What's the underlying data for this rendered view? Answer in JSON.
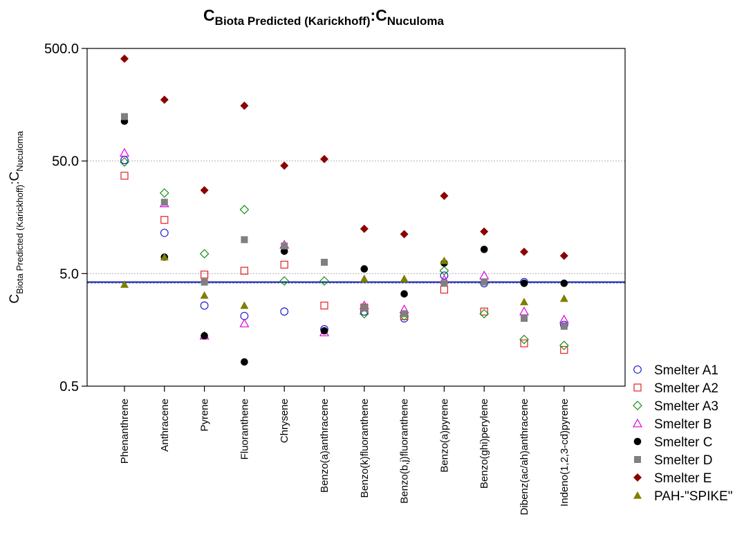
{
  "chart_data": {
    "type": "scatter",
    "title": {
      "base": "C",
      "sub1": "Biota Predicted (Karickhoff)",
      "sep": ":C",
      "sub2": "Nuculoma"
    },
    "ylabel": {
      "base": "C",
      "sub1": "Biota Predicted (Karickhoff)",
      "sep": ":C",
      "sub2": "Nuculoma"
    },
    "yscale": "log",
    "ylim": [
      0.5,
      500
    ],
    "yticks": [
      {
        "value": 500,
        "label": "500.0"
      },
      {
        "value": 50,
        "label": "50.0"
      },
      {
        "value": 5,
        "label": "5.0"
      },
      {
        "value": 0.5,
        "label": "0.5"
      }
    ],
    "gridlines": [
      50,
      5
    ],
    "reference_line": 4.2,
    "categories": [
      "Phenanthrene",
      "Anthracene",
      "Pyrene",
      "Fluoranthene",
      "Chrysene",
      "Benzo(a)anthracene",
      "Benzo(k)fluoranthene",
      "Benzo(b,j)fluoranthene",
      "Benzo(a)pyrene",
      "Benzo(ghi)perylene",
      "Dibenz(ac/ah)anthracene",
      "Indeno(1,2,3-cd)pyrene"
    ],
    "legend_position": "right",
    "series": [
      {
        "name": "Smelter A1",
        "marker": "circle-open",
        "color": "#1f1fcf",
        "values": [
          51,
          11.5,
          2.6,
          2.1,
          2.3,
          1.6,
          2.3,
          2.0,
          4.8,
          4.1,
          4.2,
          1.75
        ]
      },
      {
        "name": "Smelter A2",
        "marker": "square-open",
        "color": "#e02020",
        "values": [
          37,
          15,
          4.9,
          5.3,
          6.0,
          2.6,
          2.5,
          2.1,
          3.6,
          2.3,
          1.2,
          1.05
        ]
      },
      {
        "name": "Smelter A3",
        "marker": "diamond-open",
        "color": "#119011",
        "values": [
          49,
          26,
          7.5,
          18.5,
          4.3,
          4.3,
          2.2,
          2.1,
          5.3,
          2.2,
          1.3,
          1.15
        ]
      },
      {
        "name": "Smelter B",
        "marker": "triangle-open",
        "color": "#e000e0",
        "values": [
          59,
          21,
          1.4,
          1.8,
          9.0,
          1.5,
          2.6,
          2.4,
          4.4,
          4.8,
          2.3,
          1.95
        ]
      },
      {
        "name": "Smelter C",
        "marker": "circle-filled",
        "color": "#000000",
        "values": [
          113,
          7.0,
          1.4,
          0.82,
          7.9,
          1.55,
          5.5,
          3.3,
          6.2,
          8.2,
          4.1,
          4.1
        ]
      },
      {
        "name": "Smelter D",
        "marker": "square-filled",
        "color": "#808080",
        "values": [
          124,
          21.5,
          4.2,
          10.0,
          8.8,
          6.3,
          2.5,
          2.2,
          4.1,
          4.2,
          2.0,
          1.7
        ]
      },
      {
        "name": "Smelter E",
        "marker": "diamond-filled",
        "color": "#8b0000",
        "values": [
          405,
          175,
          27.5,
          155,
          45.5,
          52,
          12.5,
          11.2,
          24.5,
          11.8,
          7.8,
          7.2
        ]
      },
      {
        "name": "PAH-\"SPIKE\"",
        "marker": "triangle-filled",
        "color": "#7f7f00",
        "values": [
          4.0,
          7.0,
          3.2,
          2.6,
          null,
          null,
          4.5,
          4.5,
          6.5,
          null,
          2.8,
          3.0
        ]
      }
    ]
  }
}
